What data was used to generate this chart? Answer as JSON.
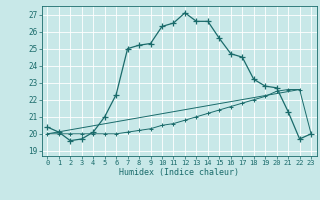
{
  "title": "",
  "xlabel": "Humidex (Indice chaleur)",
  "background_color": "#c8e8e8",
  "grid_color": "#ffffff",
  "line_color": "#1a6b6b",
  "xlim": [
    -0.5,
    23.5
  ],
  "ylim": [
    18.7,
    27.5
  ],
  "yticks": [
    19,
    20,
    21,
    22,
    23,
    24,
    25,
    26,
    27
  ],
  "xticks": [
    0,
    1,
    2,
    3,
    4,
    5,
    6,
    7,
    8,
    9,
    10,
    11,
    12,
    13,
    14,
    15,
    16,
    17,
    18,
    19,
    20,
    21,
    22,
    23
  ],
  "series1_x": [
    0,
    1,
    2,
    3,
    4,
    5,
    6,
    7,
    8,
    9,
    10,
    11,
    12,
    13,
    14,
    15,
    16,
    17,
    18,
    19,
    20,
    21,
    22,
    23
  ],
  "series1_y": [
    20.4,
    20.1,
    19.6,
    19.7,
    20.1,
    21.0,
    22.3,
    25.0,
    25.2,
    25.3,
    26.3,
    26.5,
    27.1,
    26.6,
    26.6,
    25.6,
    24.7,
    24.5,
    23.2,
    22.8,
    22.7,
    21.3,
    19.7,
    20.0
  ],
  "series2_x": [
    0,
    1,
    2,
    3,
    4,
    5,
    6,
    7,
    8,
    9,
    10,
    11,
    12,
    13,
    14,
    15,
    16,
    17,
    18,
    19,
    20,
    21,
    22,
    23
  ],
  "series2_y": [
    20.0,
    20.0,
    20.0,
    20.0,
    20.0,
    20.0,
    20.0,
    20.1,
    20.2,
    20.3,
    20.5,
    20.6,
    20.8,
    21.0,
    21.2,
    21.4,
    21.6,
    21.8,
    22.0,
    22.2,
    22.5,
    22.6,
    22.6,
    20.0
  ],
  "series3_x": [
    0,
    22
  ],
  "series3_y": [
    20.0,
    22.6
  ]
}
